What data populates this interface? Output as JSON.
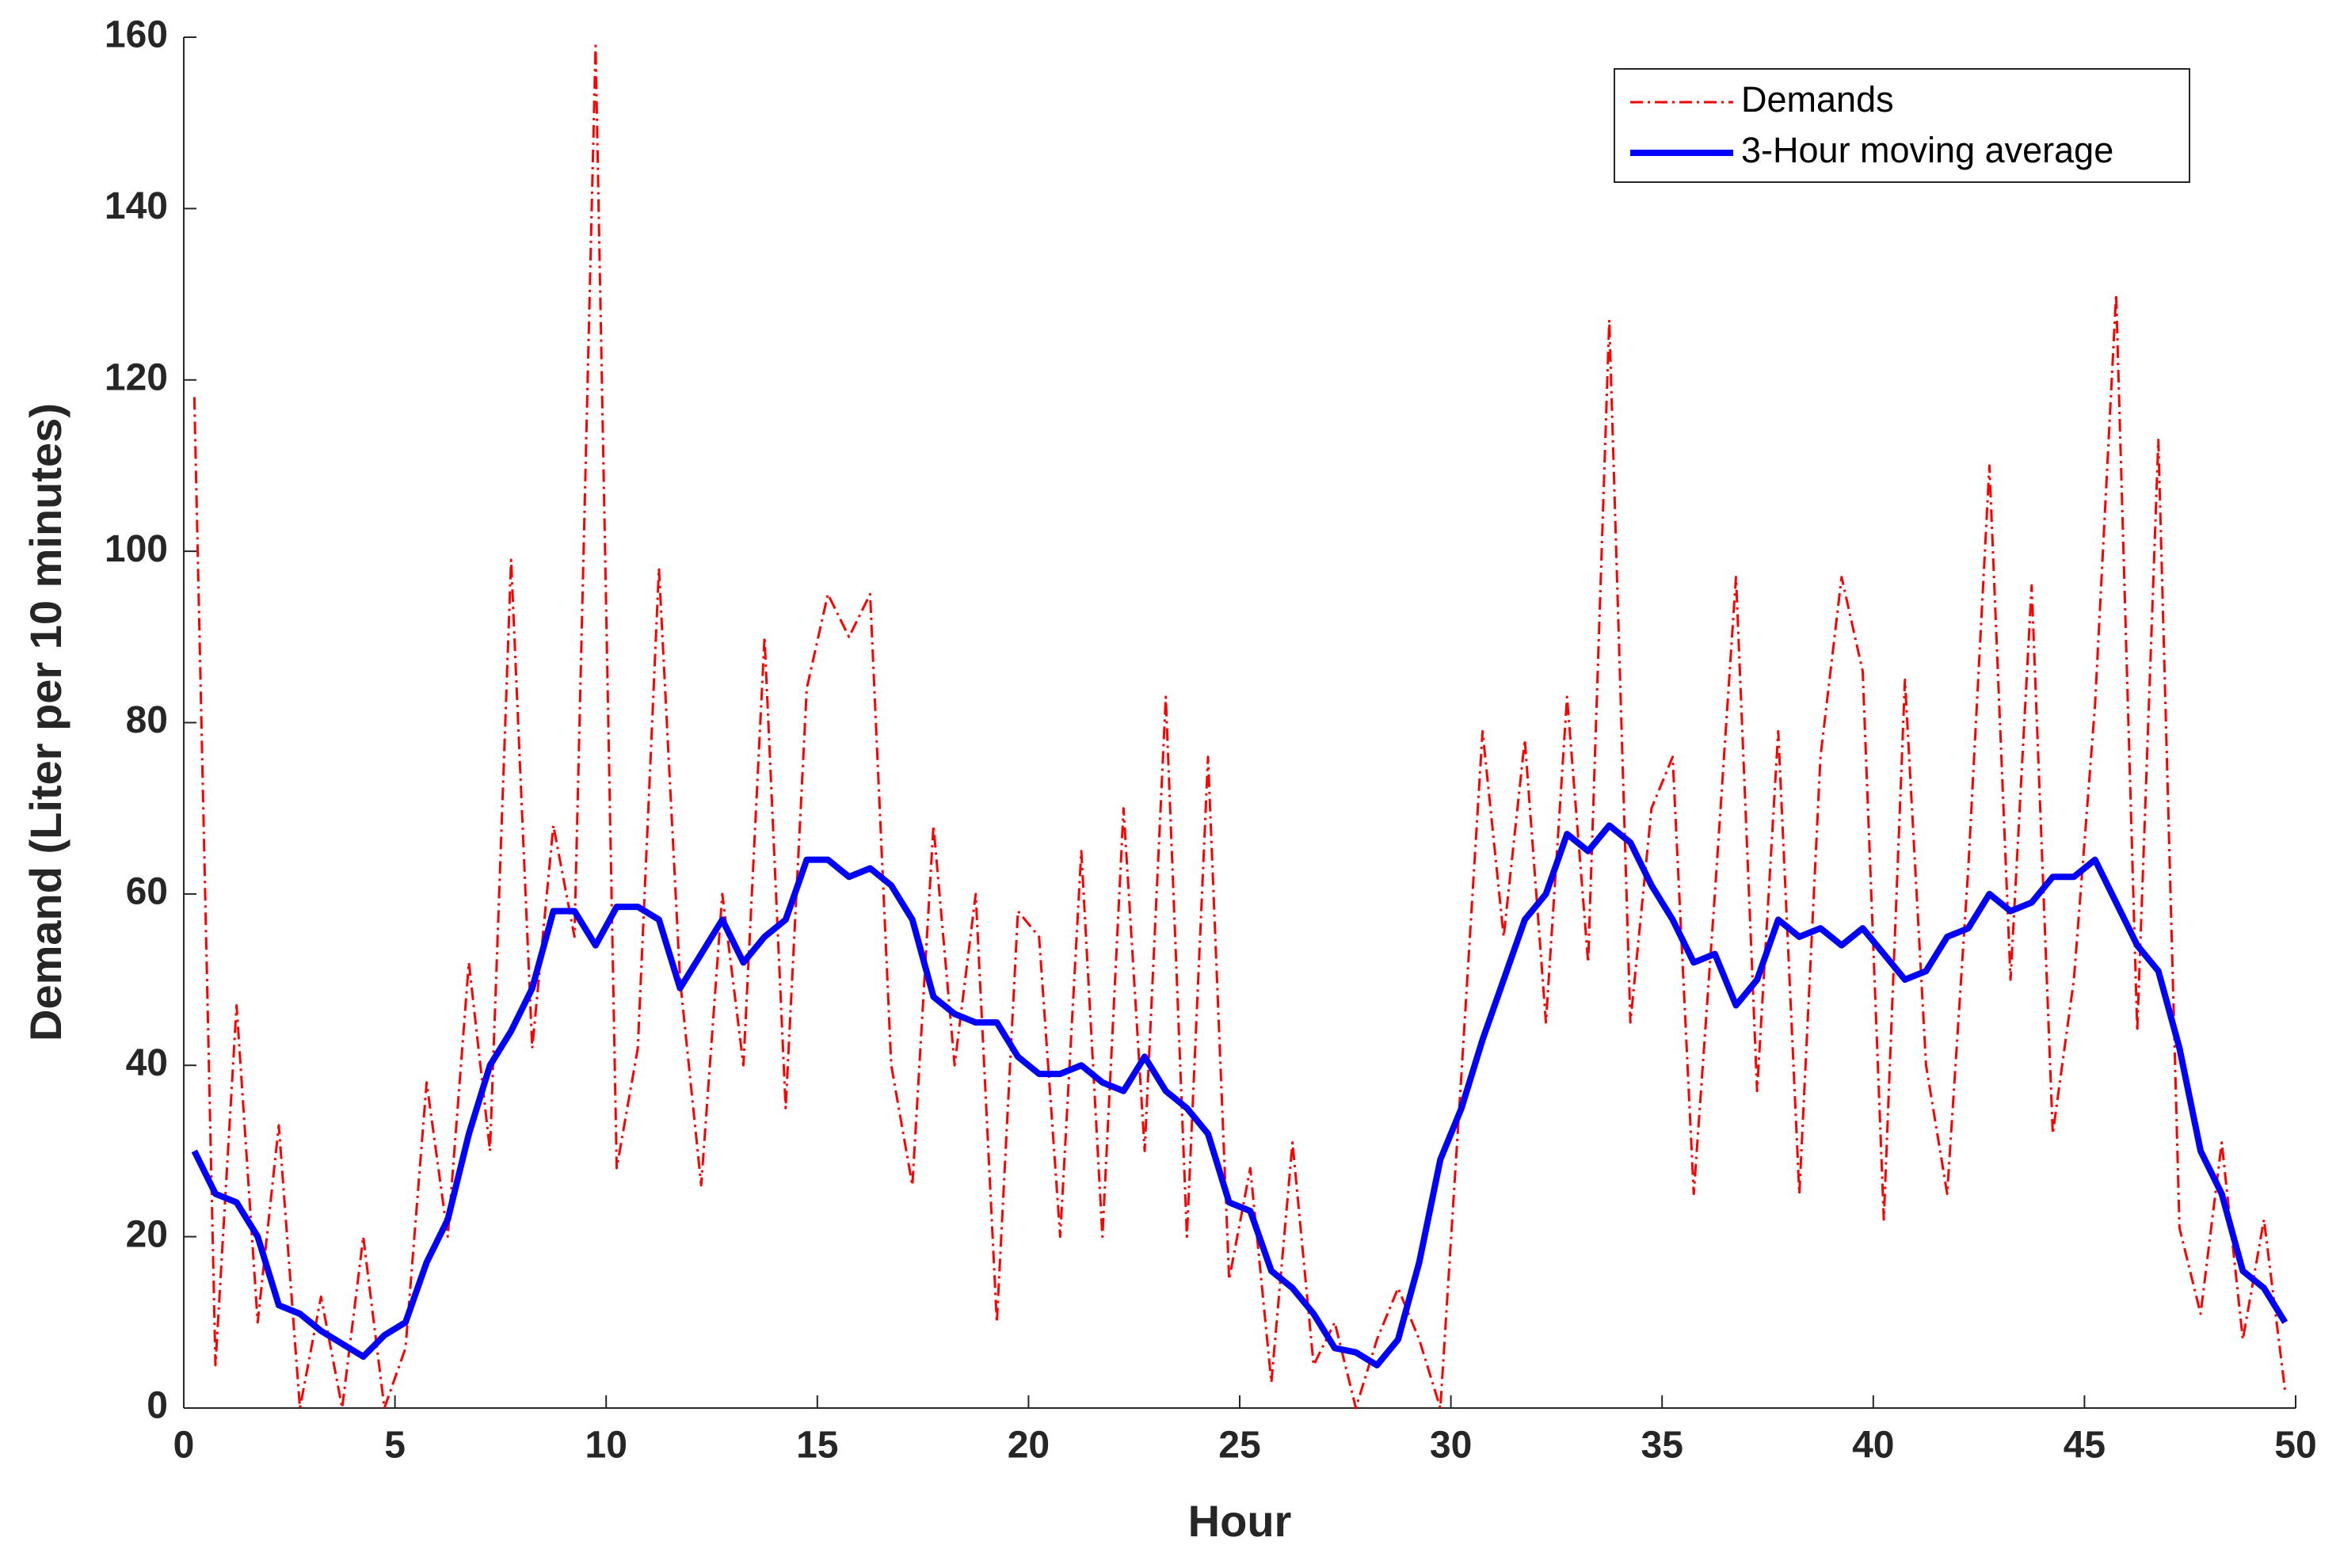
{
  "chart_data": {
    "type": "line",
    "xlabel": "Hour",
    "ylabel": "Demand (Liter per 10 minutes)",
    "x": [
      0.25,
      0.75,
      1.25,
      1.75,
      2.25,
      2.75,
      3.25,
      3.75,
      4.25,
      4.75,
      5.25,
      5.75,
      6.25,
      6.75,
      7.25,
      7.75,
      8.25,
      8.75,
      9.25,
      9.75,
      10.25,
      10.75,
      11.25,
      11.75,
      12.25,
      12.75,
      13.25,
      13.75,
      14.25,
      14.75,
      15.25,
      15.75,
      16.25,
      16.75,
      17.25,
      17.75,
      18.25,
      18.75,
      19.25,
      19.75,
      20.25,
      20.75,
      21.25,
      21.75,
      22.25,
      22.75,
      23.25,
      23.75,
      24.25,
      24.75,
      25.25,
      25.75,
      26.25,
      26.75,
      27.25,
      27.75,
      28.25,
      28.75,
      29.25,
      29.75,
      30.25,
      30.75,
      31.25,
      31.75,
      32.25,
      32.75,
      33.25,
      33.75,
      34.25,
      34.75,
      35.25,
      35.75,
      36.25,
      36.75,
      37.25,
      37.75,
      38.25,
      38.75,
      39.25,
      39.75,
      40.25,
      40.75,
      41.25,
      41.75,
      42.25,
      42.75,
      43.25,
      43.75,
      44.25,
      44.75,
      45.25,
      45.75,
      46.25,
      46.75,
      47.25,
      47.75,
      48.25,
      48.75,
      49.25,
      49.75
    ],
    "series": [
      {
        "name": "Demands",
        "color": "#ff0000",
        "style": "dashdot",
        "width": 3,
        "values": [
          118,
          5,
          47,
          10,
          33,
          0,
          13,
          0,
          20,
          0,
          7,
          38,
          20,
          52,
          30,
          99,
          42,
          68,
          55,
          159,
          28,
          42,
          98,
          50,
          26,
          60,
          40,
          90,
          35,
          84,
          95,
          90,
          95,
          40,
          26,
          68,
          40,
          60,
          10,
          58,
          55,
          20,
          65,
          20,
          70,
          30,
          83,
          20,
          76,
          15,
          28,
          3,
          31,
          5,
          10,
          0,
          8,
          14,
          8,
          0,
          39,
          79,
          55,
          78,
          45,
          83,
          52,
          127,
          45,
          70,
          76,
          25,
          60,
          97,
          37,
          79,
          25,
          76,
          97,
          86,
          22,
          85,
          40,
          25,
          63,
          110,
          50,
          96,
          32,
          50,
          82,
          130,
          44,
          113,
          21,
          11,
          31,
          8,
          22,
          2
        ]
      },
      {
        "name": "3-Hour moving average",
        "color": "#0000ff",
        "style": "solid",
        "width": 8,
        "values": [
          30,
          25,
          24,
          20,
          12,
          11,
          9,
          7.5,
          6,
          8.5,
          10,
          17,
          22,
          32,
          40,
          44,
          49,
          58,
          58,
          54,
          58.5,
          58.5,
          57,
          49,
          53,
          57,
          52,
          55,
          57,
          64,
          64,
          62,
          63,
          61,
          57,
          48,
          46,
          45,
          45,
          41,
          39,
          39,
          40,
          38,
          37,
          41,
          37,
          35,
          32,
          24,
          23,
          16,
          14,
          11,
          7,
          6.5,
          5,
          8,
          17,
          29,
          35,
          43,
          50,
          57,
          60,
          67,
          65,
          68,
          66,
          61,
          57,
          52,
          53,
          47,
          50,
          57,
          55,
          56,
          54,
          56,
          53,
          50,
          51,
          55,
          56,
          60,
          58,
          59,
          62,
          62,
          64,
          59,
          54,
          51,
          42,
          30,
          25,
          16,
          14,
          10
        ]
      }
    ],
    "xlim": [
      0,
      50
    ],
    "xticks": [
      0,
      5,
      10,
      15,
      20,
      25,
      30,
      35,
      40,
      45,
      50
    ],
    "ylim": [
      0,
      160
    ],
    "yticks": [
      0,
      20,
      40,
      60,
      80,
      100,
      120,
      140,
      160
    ],
    "legend": "top-right"
  }
}
